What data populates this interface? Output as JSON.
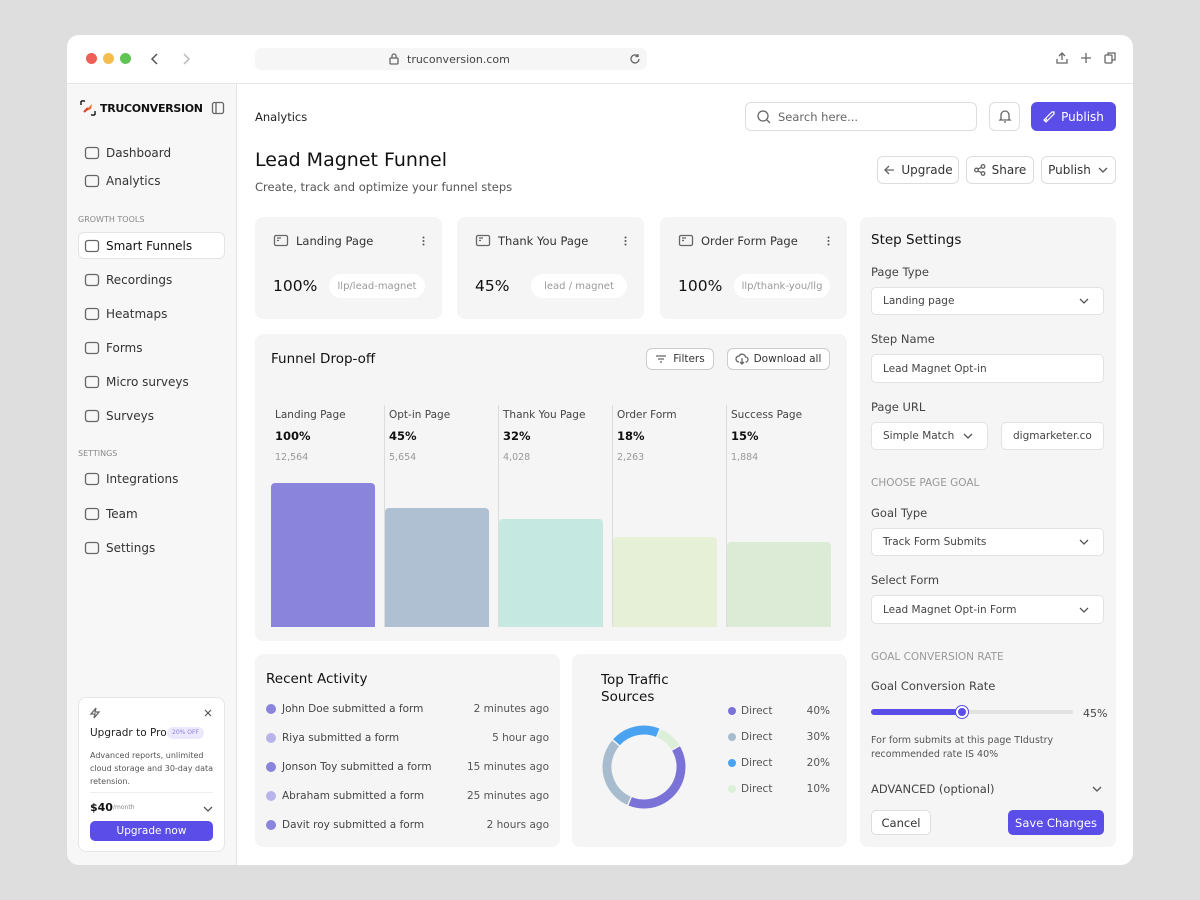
{
  "browser": {
    "url": "truconversion.com"
  },
  "sidebar": {
    "brand": "TRUCONVERSION",
    "main_nav": [
      "Dashboard",
      "Analytics"
    ],
    "growth_tools": {
      "heading": "GROWTH TOOLS",
      "items": [
        "Smart Funnels",
        "Recordings",
        "Heatmaps",
        "Forms",
        "Micro surveys",
        "Surveys"
      ],
      "active": 0
    },
    "settings": {
      "heading": "SETTINGS",
      "items": [
        "Integrations",
        "Team",
        "Settings"
      ]
    },
    "promo": {
      "title": "Upgradr to Pro",
      "badge": "20% OFF",
      "text": "Advanced reports, unlimited cloud storage and 30-day data retension.",
      "price": "$40",
      "period": "/month",
      "button": "Upgrade now"
    }
  },
  "header": {
    "breadcrumb": "Analytics",
    "search_placeholder": "Search here...",
    "publish_button": "Publish",
    "title": "Lead Magnet Funnel",
    "subtitle": "Create, track and optimize your funnel steps",
    "actions": [
      "Upgrade",
      "Share",
      "Publish"
    ]
  },
  "page_cards": [
    {
      "title": "Landing Page",
      "rate": "100%",
      "slug": "llp/lead-magnet"
    },
    {
      "title": "Thank You Page",
      "rate": "45%",
      "slug": "lead / magnet"
    },
    {
      "title": "Order Form Page",
      "rate": "100%",
      "slug": "llp/thank-you/llg"
    }
  ],
  "chart_data": [
    {
      "type": "bar",
      "title": "Funnel Drop-off",
      "buttons": [
        "Filters",
        "Download all"
      ],
      "categories": [
        "Landing Page",
        "Opt-in Page",
        "Thank You Page",
        "Order Form",
        "Success Page"
      ],
      "values": [
        100,
        45,
        32,
        18,
        15
      ],
      "value_labels": [
        "100%",
        "45%",
        "32%",
        "18%",
        "15%"
      ],
      "visitors": [
        "12,564",
        "5,654",
        "4,028",
        "2,263",
        "1,884"
      ],
      "colors": [
        "#8b84dc",
        "#afc0d3",
        "#c5e9e0",
        "#e6f0d6",
        "#dcebd6"
      ],
      "ylim": [
        1,
        100
      ],
      "log_scale": true
    },
    {
      "type": "pie",
      "title": "Top Traffic Sources",
      "categories": [
        "Direct",
        "Direct",
        "Direct",
        "Direct"
      ],
      "values": [
        40,
        30,
        20,
        10
      ],
      "value_labels": [
        "40%",
        "30%",
        "20%",
        "10%"
      ],
      "colors": [
        "#7b72d8",
        "#a8bccf",
        "#4aa3f0",
        "#dcefd9"
      ],
      "donut": true
    }
  ],
  "recent_activity": {
    "title": "Recent Activity",
    "items": [
      {
        "text": "John Doe submitted a form",
        "time": "2 minutes ago",
        "color": "#8b84dc"
      },
      {
        "text": "Riya submitted a form",
        "time": "5 hour ago",
        "color": "#b9b3ec"
      },
      {
        "text": "Jonson Toy submitted a form",
        "time": "15 minutes ago",
        "color": "#8b84dc"
      },
      {
        "text": "Abraham submitted a form",
        "time": "25 minutes ago",
        "color": "#b9b3ec"
      },
      {
        "text": "Davit roy submitted a form",
        "time": "2 hours ago",
        "color": "#8b84dc"
      }
    ]
  },
  "step_settings": {
    "title": "Step Settings",
    "page_type": {
      "label": "Page Type",
      "value": "Landing page"
    },
    "step_name": {
      "label": "Step Name",
      "value": "Lead Magnet Opt-in"
    },
    "page_url": {
      "label": "Page URL",
      "match": "Simple Match",
      "domain": "digmarketer.co"
    },
    "goal_heading": "CHOOSE PAGE GOAL",
    "goal_type": {
      "label": "Goal Type",
      "value": "Track Form Submits"
    },
    "select_form": {
      "label": "Select Form",
      "value": "Lead Magnet Opt-in Form"
    },
    "rate_heading": "GOAL CONVERSION RATE",
    "conversion_rate": {
      "label": "Goal Conversion Rate",
      "value": 45,
      "value_label": "45%",
      "range": [
        0,
        100
      ],
      "note": "For form submits at this page TIdustry recommended rate IS 40%"
    },
    "advanced": "ADVANCED (optional)",
    "cancel": "Cancel",
    "save": "Save Changes"
  }
}
